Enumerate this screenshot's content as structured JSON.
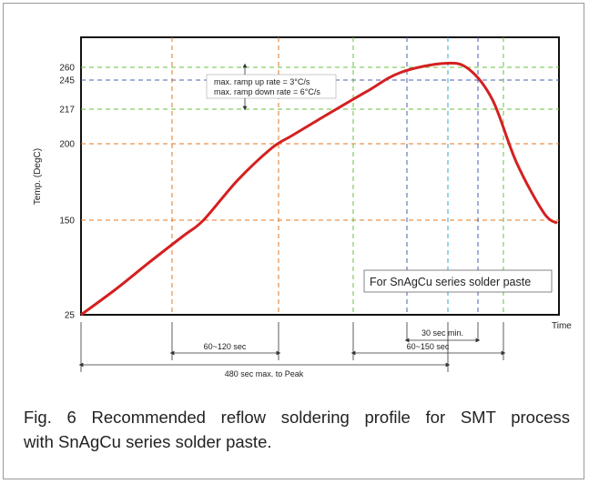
{
  "chart_data": {
    "type": "line",
    "title": "",
    "xlabel": "Time",
    "ylabel": "Temp. (DegC)",
    "y_ticks": [
      25,
      150,
      200,
      217,
      245,
      260
    ],
    "ylim": [
      25,
      290
    ],
    "xlim": [
      0,
      1000
    ],
    "grid": true,
    "series": [
      {
        "name": "",
        "color": "#d42020",
        "points": [
          [
            0,
            25
          ],
          [
            50,
            58
          ],
          [
            100,
            94
          ],
          [
            150,
            129
          ],
          [
            180,
            150
          ],
          [
            230,
            176
          ],
          [
            280,
            197
          ],
          [
            310,
            204
          ],
          [
            360,
            214
          ],
          [
            420,
            234
          ],
          [
            470,
            254
          ],
          [
            535,
            264
          ],
          [
            570,
            258
          ],
          [
            605,
            226
          ],
          [
            640,
            188
          ],
          [
            680,
            155
          ],
          [
            700,
            146
          ]
        ]
      }
    ],
    "h_reference_lines": [
      {
        "y": 260,
        "color": "#6bbf3c"
      },
      {
        "y": 245,
        "color": "#4a5fb0"
      },
      {
        "y": 217,
        "color": "#6bbf3c"
      },
      {
        "y": 200,
        "color": "#e07a22"
      },
      {
        "y": 150,
        "color": "#e07a22"
      }
    ],
    "v_reference_lines": [
      {
        "x": 180,
        "color": "#e07a22"
      },
      {
        "x": 285,
        "color": "#e07a22"
      },
      {
        "x": 370,
        "color": "#6bbf3c"
      },
      {
        "x": 440,
        "color": "#4a5fb0"
      },
      {
        "x": 480,
        "color": "#33a8c8"
      },
      {
        "x": 520,
        "color": "#4a5fb0"
      },
      {
        "x": 550,
        "color": "#6bbf3c"
      }
    ],
    "annotations": {
      "ramp_up": "max. ramp up rate = 3°C/s",
      "ramp_down": "max. ramp down rate = 6°C/s",
      "legend_box": "For SnAgCu series solder paste",
      "dim_30": "30 sec min.",
      "dim_60_120": "60~120 sec",
      "dim_60_150": "60~150 sec",
      "dim_480": "480 sec max. to Peak"
    }
  },
  "caption": {
    "line1": "Fig. 6 Recommended reflow soldering profile for SMT process",
    "line2": "with SnAgCu series solder paste."
  }
}
